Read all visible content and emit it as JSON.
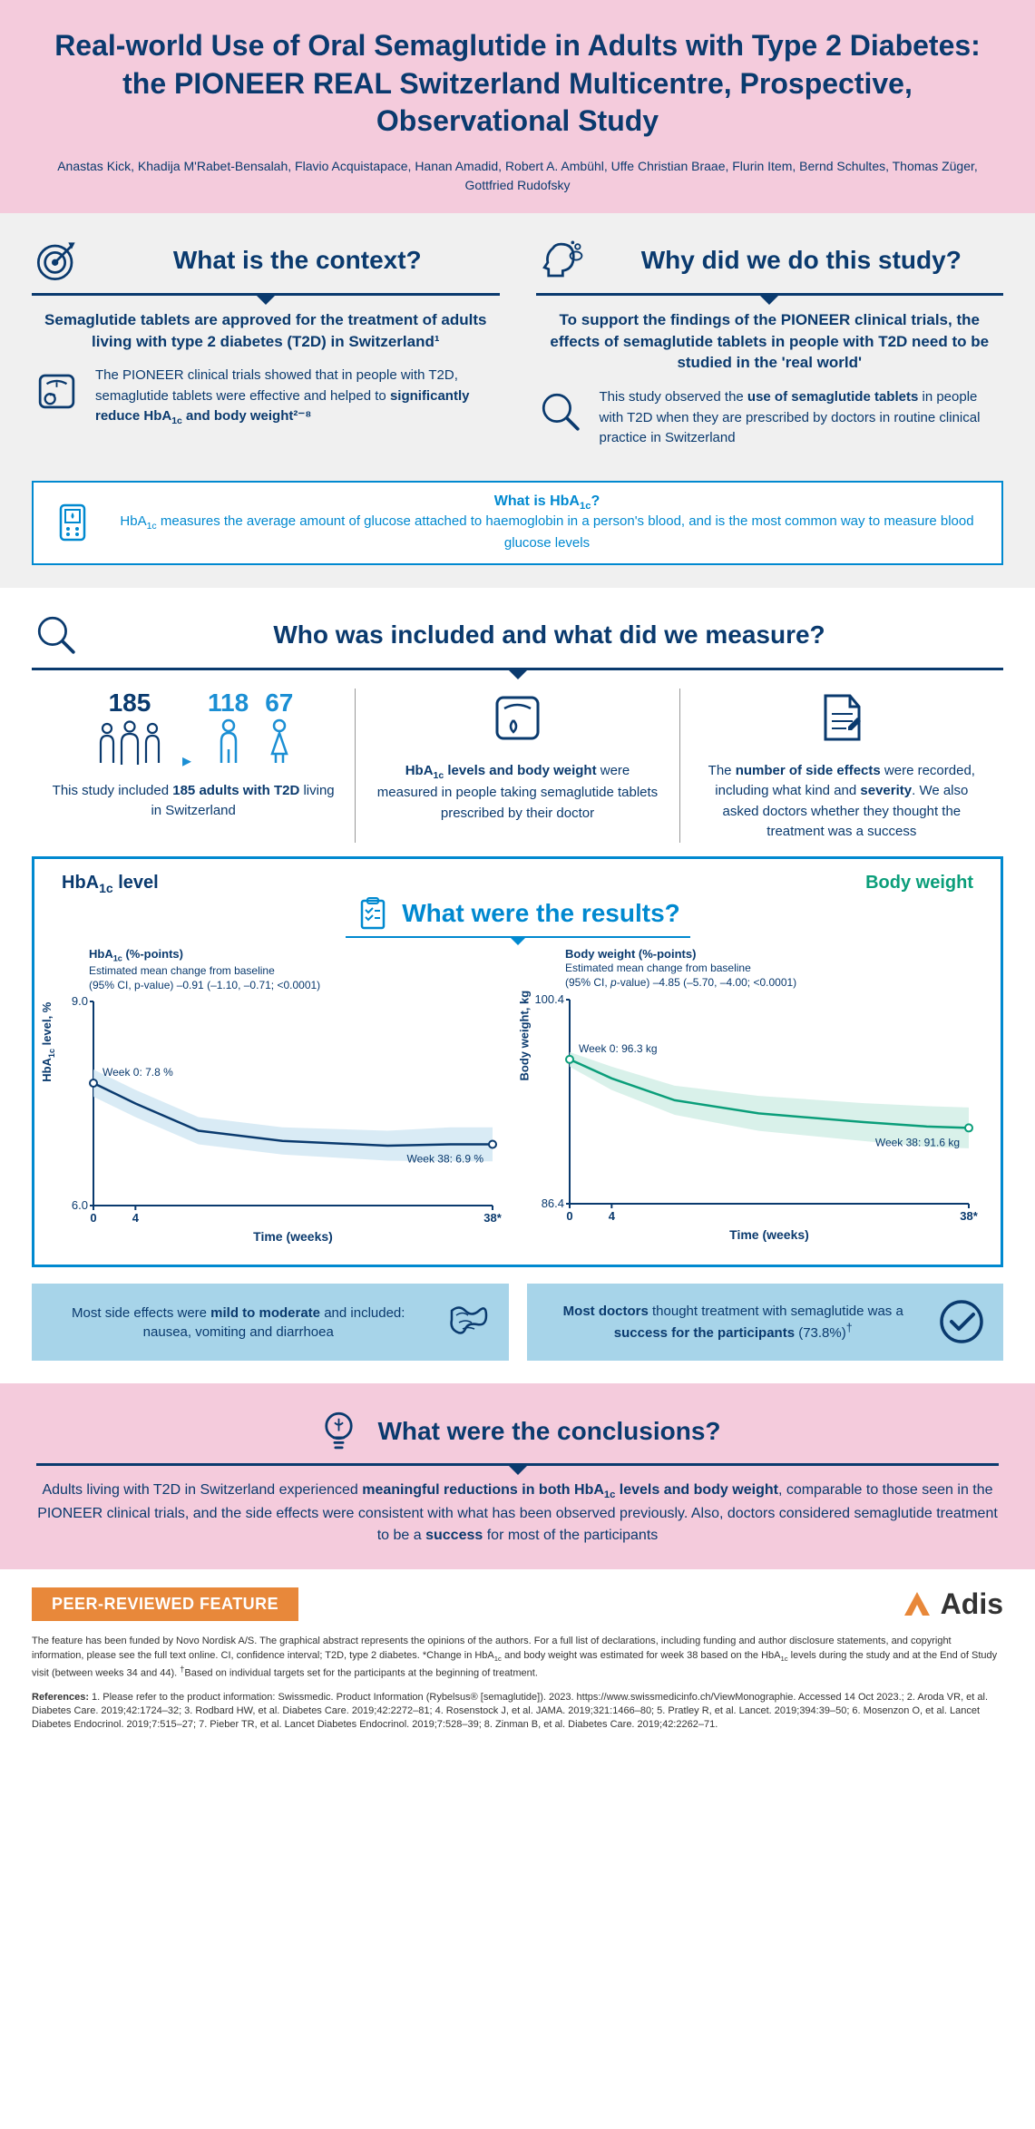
{
  "header": {
    "title": "Real-world Use of Oral Semaglutide in Adults with Type 2 Diabetes: the PIONEER REAL Switzerland Multicentre, Prospective, Observational Study",
    "authors": "Anastas Kick, Khadija M'Rabet-Bensalah, Flavio Acquistapace, Hanan Amadid, Robert A. Ambühl, Uffe Christian Braae, Flurin Item, Bernd Schultes, Thomas Züger, Gottfried Rudofsky"
  },
  "context": {
    "heading": "What is the context?",
    "lead": "Semaglutide tablets are approved for the treatment of adults living with type 2 diabetes (T2D) in Switzerland¹",
    "body_html": "The PIONEER clinical trials showed that in people with T2D, semaglutide tablets were effective and helped to <b>significantly reduce HbA<sub>1c</sub> and body weight²⁻⁸</b>"
  },
  "why": {
    "heading": "Why did we do this study?",
    "lead": "To support the findings of the PIONEER clinical trials, the effects of semaglutide tablets in people with T2D need to be studied in the 'real world'",
    "body_html": "This study observed the <b>use of semaglutide tablets</b> in people with T2D when they are prescribed by doctors in routine clinical practice in Switzerland"
  },
  "hba1c_box": {
    "q_html": "What is HbA<sub>1c</sub>?",
    "a_html": "HbA<sub>1c</sub> measures the average amount of glucose attached to haemoglobin in a person's blood, and is the most common way to measure blood glucose levels"
  },
  "who": {
    "heading": "Who was included and what did we measure?",
    "total": "185",
    "male": "118",
    "female": "67",
    "cell1_html": "This study included <b>185 adults with T2D</b> living in Switzerland",
    "cell2_html": "<b>HbA<sub>1c</sub> levels and body weight</b> were measured in people taking semaglutide tablets prescribed by their doctor",
    "cell3_html": "The <b>number of side effects</b> were recorded, including what kind and <b>severity</b>. We also asked doctors whether they thought the treatment was a success"
  },
  "results": {
    "heading": "What were the results?",
    "left_label_html": "HbA<sub>1c</sub> level",
    "right_label": "Body weight",
    "chart_hba1c": {
      "caption_html": "<b>HbA<sub>1c</sub> (%-points)</b><br>Estimated mean change from baseline<br>(95% CI, p-value) –0.91 (–1.10, –0.71; <0.0001)",
      "y_label_html": "HbA<sub>1c</sub> level, %",
      "ylim": [
        6.0,
        9.0
      ],
      "xlim": [
        0,
        38
      ],
      "xticks": [
        0,
        4,
        38
      ],
      "xtick_labels": [
        "0",
        "4",
        "38*"
      ],
      "xlabel": "Time (weeks)",
      "line_color": "#0a3a6e",
      "band_color": "#cfe6f3",
      "points": [
        [
          0,
          7.8
        ],
        [
          4,
          7.5
        ],
        [
          10,
          7.1
        ],
        [
          18,
          6.95
        ],
        [
          28,
          6.88
        ],
        [
          34,
          6.9
        ],
        [
          38,
          6.9
        ]
      ],
      "band_upper": [
        [
          0,
          8.0
        ],
        [
          4,
          7.7
        ],
        [
          10,
          7.3
        ],
        [
          18,
          7.15
        ],
        [
          28,
          7.1
        ],
        [
          34,
          7.15
        ],
        [
          38,
          7.15
        ]
      ],
      "band_lower": [
        [
          0,
          7.6
        ],
        [
          4,
          7.3
        ],
        [
          10,
          6.9
        ],
        [
          18,
          6.75
        ],
        [
          28,
          6.66
        ],
        [
          34,
          6.65
        ],
        [
          38,
          6.65
        ]
      ],
      "annot_start": "Week 0: 7.8 %",
      "annot_end": "Week 38: 6.9 %"
    },
    "chart_bw": {
      "caption_html": "<b>Body weight (%-points)</b><br>Estimated mean change from baseline<br>(95% CI, <i>p</i>-value) –4.85 (–5.70, –4.00; <0.0001)",
      "y_label": "Body weight, kg",
      "ylim": [
        86.4,
        100.4
      ],
      "xlim": [
        0,
        38
      ],
      "xticks": [
        0,
        4,
        38
      ],
      "xtick_labels": [
        "0",
        "4",
        "38*"
      ],
      "xlabel": "Time (weeks)",
      "line_color": "#0b9e7a",
      "band_color": "#cfeee5",
      "points": [
        [
          0,
          96.3
        ],
        [
          4,
          95.0
        ],
        [
          10,
          93.5
        ],
        [
          18,
          92.6
        ],
        [
          28,
          92.0
        ],
        [
          34,
          91.7
        ],
        [
          38,
          91.6
        ]
      ],
      "band_upper": [
        [
          0,
          96.8
        ],
        [
          4,
          95.8
        ],
        [
          10,
          94.5
        ],
        [
          18,
          93.8
        ],
        [
          28,
          93.3
        ],
        [
          34,
          93.1
        ],
        [
          38,
          93.0
        ]
      ],
      "band_lower": [
        [
          0,
          95.8
        ],
        [
          4,
          94.2
        ],
        [
          10,
          92.5
        ],
        [
          18,
          91.4
        ],
        [
          28,
          90.7
        ],
        [
          34,
          90.3
        ],
        [
          38,
          90.2
        ]
      ],
      "annot_start": "Week 0: 96.3 kg",
      "annot_end": "Week 38: 91.6 kg"
    }
  },
  "side_effects_html": "Most side effects were <b>mild to moderate</b> and included: nausea, vomiting and diarrhoea",
  "success_html": "<b>Most doctors</b> thought treatment with semaglutide was a <b>success for the participants</b> (73.8%)<sup>†</sup>",
  "conclusions": {
    "heading": "What were the conclusions?",
    "body_html": "Adults living with T2D in Switzerland experienced <b>meaningful reductions in both HbA<sub>1c</sub> levels and body weight</b>, comparable to those seen in the PIONEER clinical trials, and the side effects were consistent with what has been observed previously. Also, doctors considered semaglutide treatment to be a <b>success</b> for most of the participants"
  },
  "footer": {
    "badge": "PEER-REVIEWED FEATURE",
    "logo": "Adis",
    "text_html": "The feature has been funded by Novo Nordisk A/S. The graphical abstract represents the opinions of the authors. For a full list of declarations, including funding and author disclosure statements, and copyright information, please see the full text online. CI, confidence interval; T2D, type 2 diabetes. *Change in HbA<sub>1c</sub> and body weight was estimated for week 38 based on the HbA<sub>1c</sub> levels during the study and at the End of Study visit (between weeks 34 and 44). <sup>†</sup>Based on individual targets set for the participants at the beginning of treatment.",
    "refs_html": "<b>References:</b> 1. Please refer to the product information: Swissmedic. Product Information (Rybelsus® [semaglutide]). 2023. https://www.swissmedicinfo.ch/ViewMonographie. Accessed 14 Oct 2023.; 2. Aroda VR, et al. Diabetes Care. 2019;42:1724–32; 3. Rodbard HW, et al. Diabetes Care. 2019;42:2272–81; 4. Rosenstock J, et al. JAMA. 2019;321:1466–80; 5. Pratley R, et al. Lancet. 2019;394:39–50; 6. Mosenzon O, et al. Lancet Diabetes Endocrinol. 2019;7:515–27; 7. Pieber TR, et al. Lancet Diabetes Endocrinol. 2019;7:528–39; 8. Zinman B, et al. Diabetes Care. 2019;42:2262–71."
  },
  "colors": {
    "navy": "#0a3a6e",
    "blue": "#0089d0",
    "lightblue": "#1b8fd4",
    "pink": "#f4cbdc",
    "gray": "#f0f0f0",
    "teal": "#0b9e7a",
    "orange": "#e8883a",
    "skyblue": "#a7d4e9"
  }
}
